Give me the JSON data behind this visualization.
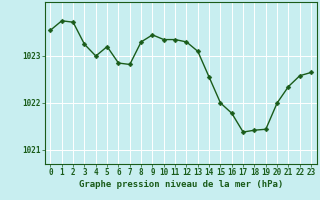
{
  "x": [
    0,
    1,
    2,
    3,
    4,
    5,
    6,
    7,
    8,
    9,
    10,
    11,
    12,
    13,
    14,
    15,
    16,
    17,
    18,
    19,
    20,
    21,
    22,
    23
  ],
  "y": [
    1023.55,
    1023.75,
    1023.72,
    1023.25,
    1023.0,
    1023.2,
    1022.85,
    1022.82,
    1023.3,
    1023.45,
    1023.35,
    1023.35,
    1023.3,
    1023.1,
    1022.55,
    1022.0,
    1021.78,
    1021.38,
    1021.42,
    1021.44,
    1022.0,
    1022.35,
    1022.58,
    1022.65
  ],
  "line_color": "#1a5c1a",
  "marker_color": "#1a5c1a",
  "bg_color": "#c8eef0",
  "grid_color": "#ffffff",
  "axis_color": "#1a5c1a",
  "xlabel": "Graphe pression niveau de la mer (hPa)",
  "xlabel_fontsize": 6.5,
  "ylabel_ticks": [
    1021,
    1022,
    1023
  ],
  "ylim": [
    1020.7,
    1024.15
  ],
  "xlim": [
    -0.5,
    23.5
  ],
  "xticks": [
    0,
    1,
    2,
    3,
    4,
    5,
    6,
    7,
    8,
    9,
    10,
    11,
    12,
    13,
    14,
    15,
    16,
    17,
    18,
    19,
    20,
    21,
    22,
    23
  ],
  "tick_fontsize": 5.5,
  "marker_size": 2.5,
  "line_width": 1.0
}
